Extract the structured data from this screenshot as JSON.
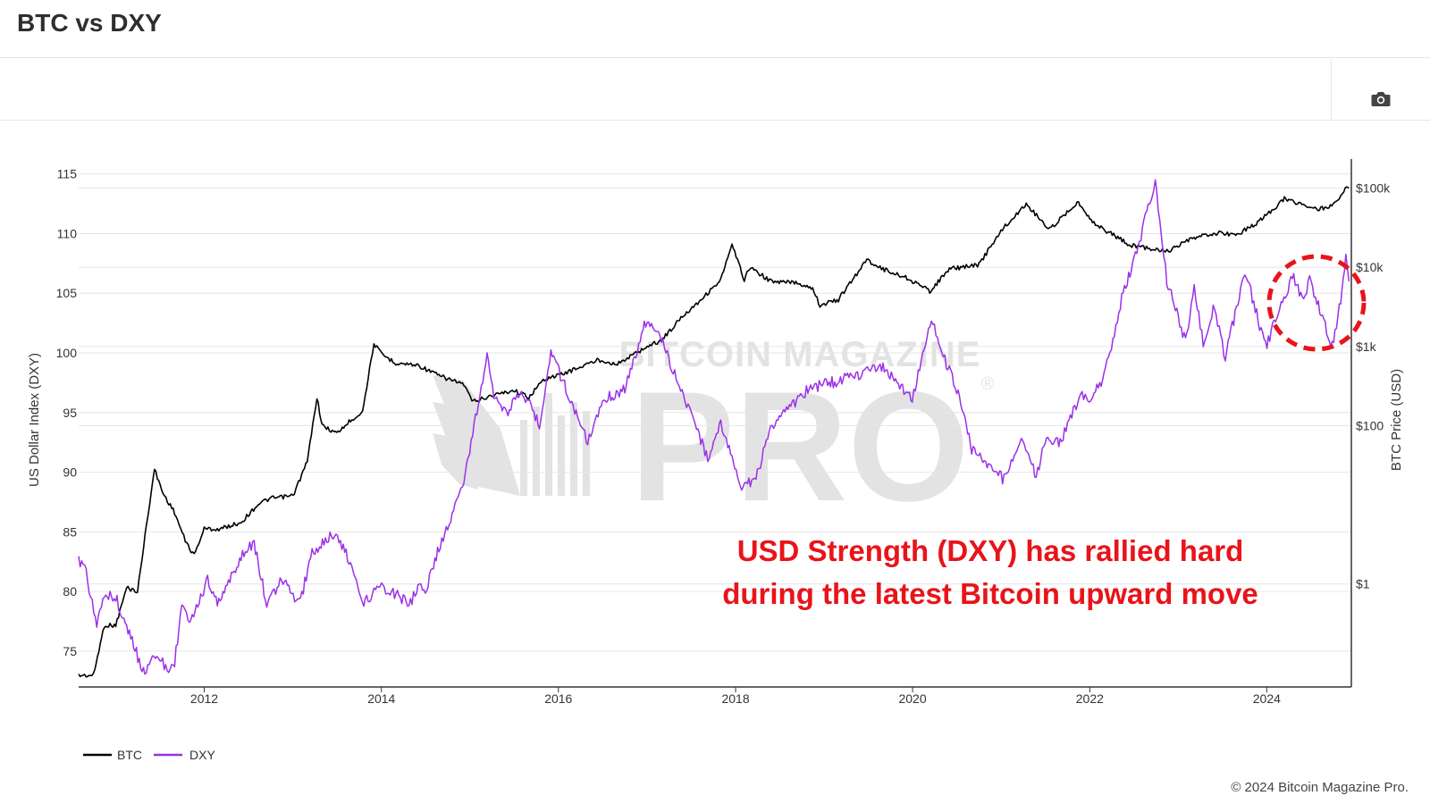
{
  "page": {
    "title": "BTC vs DXY",
    "camera_icon": "camera-icon",
    "copyright": "© 2024 Bitcoin Magazine Pro."
  },
  "watermark": {
    "top_text": "BITCOIN MAGAZINE",
    "main_text": "PRO",
    "registered": "®"
  },
  "annotation": {
    "line1": "USD Strength (DXY) has rallied hard",
    "line2": "during the latest Bitcoin upward move",
    "color": "#e8141a"
  },
  "colors": {
    "btc": "#000000",
    "dxy": "#9b30e8",
    "grid": "#e6e6e6",
    "axis": "#333333",
    "highlight": "#e8141a"
  },
  "chart_data": {
    "type": "line",
    "title": "BTC vs DXY",
    "x_axis": {
      "range": [
        "2010-08-01",
        "2024-12-15"
      ],
      "ticks": [
        "2012",
        "2014",
        "2016",
        "2018",
        "2020",
        "2022",
        "2024"
      ]
    },
    "y_left": {
      "label": "US Dollar Index (DXY)",
      "range": [
        72,
        115.5
      ],
      "ticks": [
        "75",
        "80",
        "85",
        "90",
        "95",
        "100",
        "105",
        "110",
        "115"
      ]
    },
    "y_right": {
      "label": "BTC Price (USD)",
      "scale": "log",
      "range": [
        0.05,
        180000
      ],
      "ticks": [
        {
          "value": 1,
          "label": "$1"
        },
        {
          "value": 100,
          "label": "$100"
        },
        {
          "value": 1000,
          "label": "$1k"
        },
        {
          "value": 10000,
          "label": "$10k"
        },
        {
          "value": 100000,
          "label": "$100k"
        }
      ]
    },
    "legend": {
      "placement": "bottom-left",
      "entries": [
        "BTC",
        "DXY"
      ]
    },
    "grid": true,
    "series": [
      {
        "name": "BTC",
        "axis": "right",
        "points": [
          [
            "2010-08-01",
            0.07
          ],
          [
            "2010-10-01",
            0.07
          ],
          [
            "2010-11-15",
            0.3
          ],
          [
            "2011-01-01",
            0.3
          ],
          [
            "2011-02-15",
            0.9
          ],
          [
            "2011-04-01",
            0.8
          ],
          [
            "2011-05-15",
            8
          ],
          [
            "2011-06-10",
            28
          ],
          [
            "2011-07-15",
            14
          ],
          [
            "2011-09-01",
            8
          ],
          [
            "2011-10-15",
            3.5
          ],
          [
            "2011-11-20",
            2.3
          ],
          [
            "2012-01-01",
            5
          ],
          [
            "2012-03-01",
            4.9
          ],
          [
            "2012-06-01",
            6
          ],
          [
            "2012-08-15",
            10.5
          ],
          [
            "2012-10-01",
            12
          ],
          [
            "2013-01-01",
            13
          ],
          [
            "2013-03-01",
            35
          ],
          [
            "2013-04-10",
            230
          ],
          [
            "2013-05-01",
            100
          ],
          [
            "2013-07-01",
            80
          ],
          [
            "2013-09-01",
            120
          ],
          [
            "2013-10-15",
            150
          ],
          [
            "2013-12-01",
            1100
          ],
          [
            "2014-01-01",
            800
          ],
          [
            "2014-03-01",
            620
          ],
          [
            "2014-06-01",
            580
          ],
          [
            "2014-09-01",
            420
          ],
          [
            "2014-12-01",
            340
          ],
          [
            "2015-01-15",
            200
          ],
          [
            "2015-04-01",
            240
          ],
          [
            "2015-07-01",
            280
          ],
          [
            "2015-09-01",
            230
          ],
          [
            "2015-11-05",
            390
          ],
          [
            "2016-01-01",
            430
          ],
          [
            "2016-06-15",
            680
          ],
          [
            "2016-09-01",
            600
          ],
          [
            "2017-01-01",
            1000
          ],
          [
            "2017-03-01",
            1200
          ],
          [
            "2017-06-01",
            2500
          ],
          [
            "2017-09-01",
            4500
          ],
          [
            "2017-11-01",
            7000
          ],
          [
            "2017-12-17",
            19000
          ],
          [
            "2018-02-06",
            7000
          ],
          [
            "2018-03-01",
            10000
          ],
          [
            "2018-06-01",
            6500
          ],
          [
            "2018-09-01",
            6500
          ],
          [
            "2018-11-15",
            5500
          ],
          [
            "2018-12-15",
            3300
          ],
          [
            "2019-03-01",
            3900
          ],
          [
            "2019-06-26",
            12500
          ],
          [
            "2019-09-01",
            9500
          ],
          [
            "2019-12-15",
            7200
          ],
          [
            "2020-03-12",
            5000
          ],
          [
            "2020-06-01",
            9500
          ],
          [
            "2020-10-01",
            10800
          ],
          [
            "2020-12-31",
            29000
          ],
          [
            "2021-04-14",
            63000
          ],
          [
            "2021-07-20",
            30000
          ],
          [
            "2021-11-10",
            67000
          ],
          [
            "2022-01-24",
            35000
          ],
          [
            "2022-06-18",
            19000
          ],
          [
            "2022-11-21",
            16000
          ],
          [
            "2023-03-01",
            23000
          ],
          [
            "2023-06-01",
            27000
          ],
          [
            "2023-09-01",
            26000
          ],
          [
            "2023-12-01",
            38000
          ],
          [
            "2024-03-14",
            73000
          ],
          [
            "2024-08-05",
            54000
          ],
          [
            "2024-10-01",
            62000
          ],
          [
            "2024-11-20",
            96000
          ],
          [
            "2024-12-05",
            100000
          ]
        ]
      },
      {
        "name": "DXY",
        "axis": "left",
        "points": [
          [
            "2010-08-01",
            82.8
          ],
          [
            "2010-09-01",
            81.5
          ],
          [
            "2010-10-15",
            77.0
          ],
          [
            "2010-11-15",
            80.0
          ],
          [
            "2011-01-01",
            79.5
          ],
          [
            "2011-02-15",
            77.0
          ],
          [
            "2011-05-01",
            73.0
          ],
          [
            "2011-06-01",
            75.0
          ],
          [
            "2011-08-01",
            73.5
          ],
          [
            "2011-09-01",
            74.0
          ],
          [
            "2011-10-01",
            79.0
          ],
          [
            "2011-11-01",
            77.0
          ],
          [
            "2012-01-15",
            81.0
          ],
          [
            "2012-03-01",
            79.0
          ],
          [
            "2012-06-01",
            83.0
          ],
          [
            "2012-07-25",
            84.0
          ],
          [
            "2012-09-15",
            79.0
          ],
          [
            "2012-11-15",
            81.0
          ],
          [
            "2013-02-01",
            79.0
          ],
          [
            "2013-03-15",
            83.0
          ],
          [
            "2013-05-15",
            84.5
          ],
          [
            "2013-07-10",
            84.5
          ],
          [
            "2013-09-01",
            82.0
          ],
          [
            "2013-10-20",
            79.0
          ],
          [
            "2014-01-01",
            80.5
          ],
          [
            "2014-05-01",
            79.0
          ],
          [
            "2014-06-01",
            80.5
          ],
          [
            "2014-07-01",
            80.0
          ],
          [
            "2014-09-01",
            84.0
          ],
          [
            "2014-12-01",
            88.5
          ],
          [
            "2015-03-13",
            100.0
          ],
          [
            "2015-04-15",
            96.0
          ],
          [
            "2015-06-01",
            95.0
          ],
          [
            "2015-08-01",
            97.0
          ],
          [
            "2015-10-15",
            94.0
          ],
          [
            "2015-12-01",
            100.0
          ],
          [
            "2016-02-01",
            97.0
          ],
          [
            "2016-05-01",
            92.5
          ],
          [
            "2016-07-01",
            96.0
          ],
          [
            "2016-10-01",
            97.0
          ],
          [
            "2017-01-01",
            103.0
          ],
          [
            "2017-03-01",
            101.0
          ],
          [
            "2017-05-01",
            98.0
          ],
          [
            "2017-07-01",
            95.0
          ],
          [
            "2017-09-08",
            91.0
          ],
          [
            "2017-11-01",
            94.0
          ],
          [
            "2018-02-01",
            88.5
          ],
          [
            "2018-04-01",
            90.0
          ],
          [
            "2018-06-01",
            94.0
          ],
          [
            "2018-11-01",
            97.0
          ],
          [
            "2019-05-01",
            98.0
          ],
          [
            "2019-09-01",
            99.0
          ],
          [
            "2019-12-31",
            96.0
          ],
          [
            "2020-03-19",
            102.8
          ],
          [
            "2020-05-01",
            100.0
          ],
          [
            "2020-07-01",
            97.0
          ],
          [
            "2020-09-01",
            92.0
          ],
          [
            "2021-01-06",
            89.5
          ],
          [
            "2021-03-31",
            93.0
          ],
          [
            "2021-05-25",
            89.5
          ],
          [
            "2021-07-01",
            92.5
          ],
          [
            "2021-09-01",
            92.5
          ],
          [
            "2021-11-24",
            96.5
          ],
          [
            "2022-01-01",
            96.0
          ],
          [
            "2022-03-01",
            98.0
          ],
          [
            "2022-05-13",
            104.5
          ],
          [
            "2022-07-14",
            108.5
          ],
          [
            "2022-09-28",
            114.5
          ],
          [
            "2022-11-15",
            106.0
          ],
          [
            "2023-01-31",
            101.0
          ],
          [
            "2023-03-08",
            105.5
          ],
          [
            "2023-04-14",
            101.0
          ],
          [
            "2023-05-31",
            104.0
          ],
          [
            "2023-07-14",
            99.5
          ],
          [
            "2023-10-03",
            107.0
          ],
          [
            "2023-12-27",
            100.5
          ],
          [
            "2024-04-16",
            106.5
          ],
          [
            "2024-06-01",
            104.5
          ],
          [
            "2024-06-26",
            106.0
          ],
          [
            "2024-08-01",
            104.0
          ],
          [
            "2024-09-27",
            100.5
          ],
          [
            "2024-11-01",
            104.5
          ],
          [
            "2024-11-22",
            108.0
          ],
          [
            "2024-12-05",
            106.0
          ]
        ]
      }
    ]
  }
}
